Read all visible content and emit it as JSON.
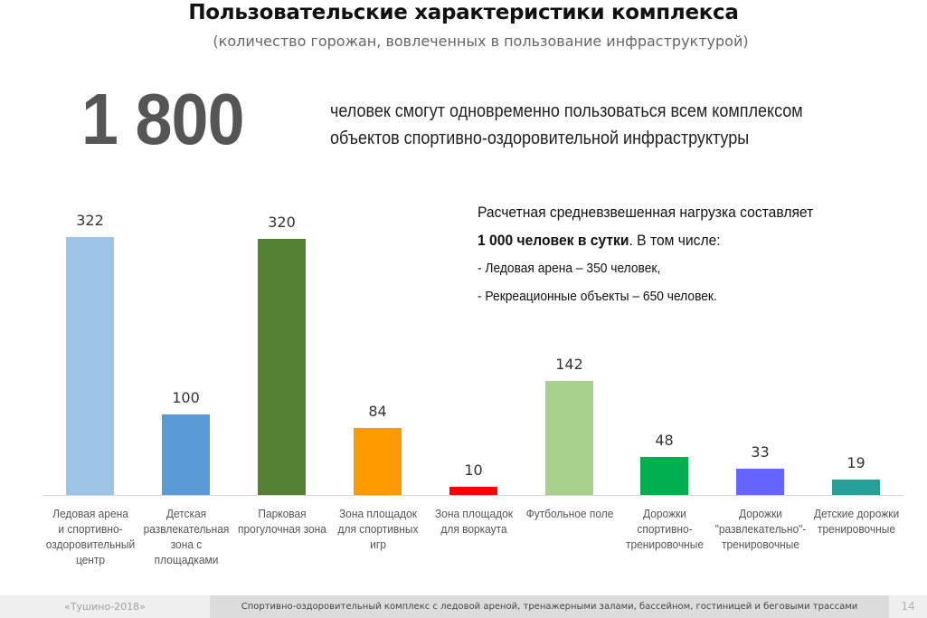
{
  "header": {
    "title": "Пользовательские характеристики комплекса",
    "subtitle": "(количество горожан, вовлеченных в пользование инфраструктурой)"
  },
  "headline": {
    "number": "1 800",
    "caption_line1": "человек смогут одновременно пользоваться всем комплексом",
    "caption_line2": "объектов спортивно-оздоровительной инфраструктуры"
  },
  "note": {
    "line1": "Расчетная средневзвешенная нагрузка составляет",
    "line2_bold": "1 000 человек в сутки",
    "line2_rest": ". В том числе:",
    "line3": "- Ледовая арена – 350 человек,",
    "line4": "- Рекреационные объекты – 650 человек."
  },
  "chart_data": {
    "type": "bar",
    "title": "Пользовательские характеристики комплекса",
    "subtitle": "(количество горожан, вовлеченных в пользование инфраструктурой)",
    "xlabel": "",
    "ylabel": "",
    "ylim": [
      0,
      322
    ],
    "grid": false,
    "legend": null,
    "categories": [
      "Ледовая арена и спортивно-оздоровительный центр",
      "Детская развлекательная зона с площадками",
      "Парковая прогулочная зона",
      "Зона площадок для спортивных игр",
      "Зона площадок для воркаута",
      "Футбольное поле",
      "Дорожки спортивно-тренировочные",
      "Дорожки \"развлекательно\"-тренировочные",
      "Детские дорожки тренировочные"
    ],
    "values": [
      322,
      100,
      320,
      84,
      10,
      142,
      48,
      33,
      19
    ],
    "colors": [
      "#9dc3e6",
      "#5b9bd5",
      "#548235",
      "#ff9900",
      "#ff0000",
      "#a9d18e",
      "#00b050",
      "#6666ff",
      "#26a096"
    ],
    "labels": [
      [
        "Ледовая арена",
        "и спортивно-",
        "оздоровительный",
        "центр"
      ],
      [
        "Детская",
        "развлекательная",
        "зона с",
        "площадками"
      ],
      [
        "Парковая",
        "прогулочная зона"
      ],
      [
        "Зона площадок",
        "для спортивных",
        "игр"
      ],
      [
        "Зона площадок",
        "для воркаута"
      ],
      [
        "Футбольное поле"
      ],
      [
        "Дорожки",
        "спортивно-",
        "тренировочные"
      ],
      [
        "Дорожки",
        "\"развлекательно\"-",
        "тренировочные"
      ],
      [
        "Детские дорожки",
        "тренировочные"
      ]
    ],
    "value_labels": [
      "322",
      "100",
      "320",
      "84",
      "10",
      "142",
      "48",
      "33",
      "19"
    ]
  },
  "footer": {
    "left": "«Тушино-2018»",
    "center": "Спортивно-оздоровительный комплекс с ледовой ареной, тренажерными залами, бассейном, гостиницей и беговыми трассами",
    "page_number": "14"
  }
}
